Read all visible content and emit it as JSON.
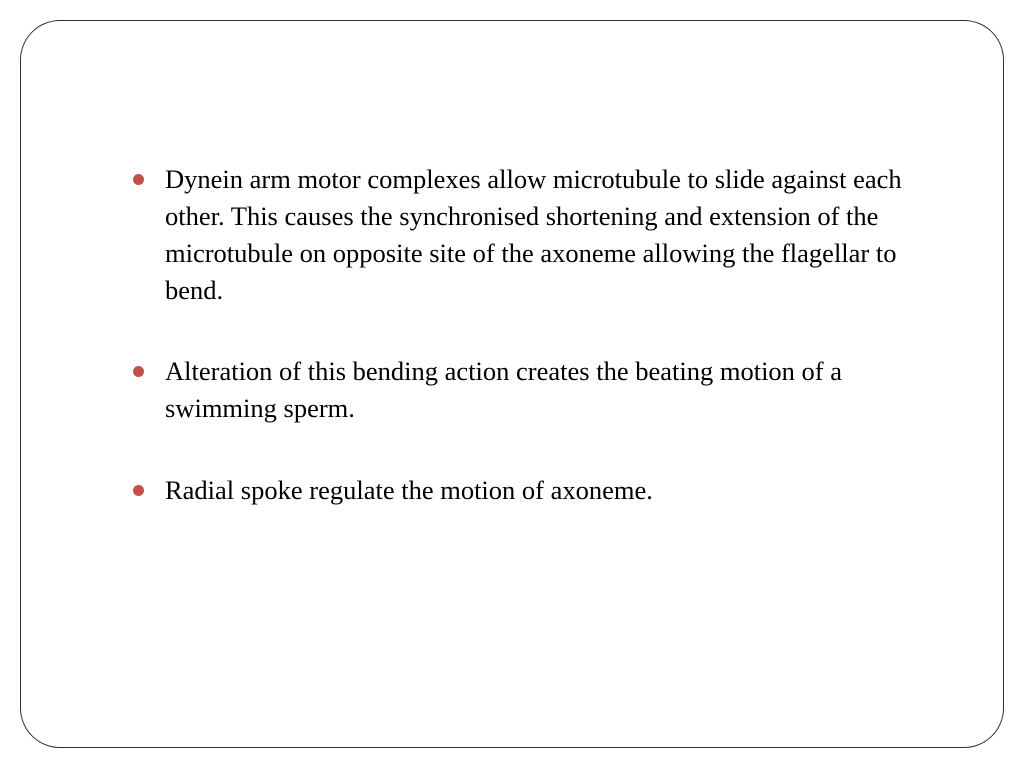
{
  "slide": {
    "bullets": [
      "Dynein arm motor complexes allow microtubule to slide against each other. This causes the synchronised shortening and extension of the microtubule on opposite site of the axoneme allowing  the flagellar to bend.",
      "Alteration of this bending action creates the beating motion of a swimming sperm.",
      "Radial spoke regulate the motion of axoneme."
    ],
    "styling": {
      "bullet_color": "#c0504d",
      "text_color": "#000000",
      "border_color": "#333333",
      "background_color": "#ffffff",
      "border_radius": 40,
      "font_family": "Garamond serif",
      "font_size": 26.5,
      "line_height": 1.4,
      "bullet_diameter": 11,
      "bullet_indent": 34,
      "item_spacing": 44
    }
  }
}
